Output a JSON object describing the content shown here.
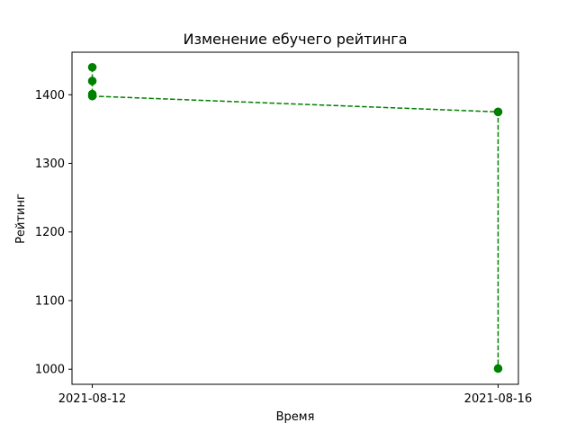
{
  "chart_data": {
    "type": "line",
    "title": "Изменение ебучего рейтинга",
    "xlabel": "Время",
    "ylabel": "Рейтинг",
    "x_ticks": [
      "2021-08-12",
      "2021-08-16"
    ],
    "y_ticks": [
      1000,
      1100,
      1200,
      1300,
      1400
    ],
    "xlim": [
      "2021-08-11 19:12",
      "2021-08-16 04:48"
    ],
    "ylim": [
      978,
      1462
    ],
    "grid": false,
    "series": [
      {
        "color": "#008000",
        "line_style": "dashed",
        "marker": "circle",
        "points": [
          {
            "x": "2021-08-12",
            "y": 1440
          },
          {
            "x": "2021-08-12",
            "y": 1420
          },
          {
            "x": "2021-08-12",
            "y": 1401
          },
          {
            "x": "2021-08-12",
            "y": 1398
          },
          {
            "x": "2021-08-16",
            "y": 1375
          },
          {
            "x": "2021-08-16",
            "y": 1001
          }
        ]
      }
    ]
  }
}
